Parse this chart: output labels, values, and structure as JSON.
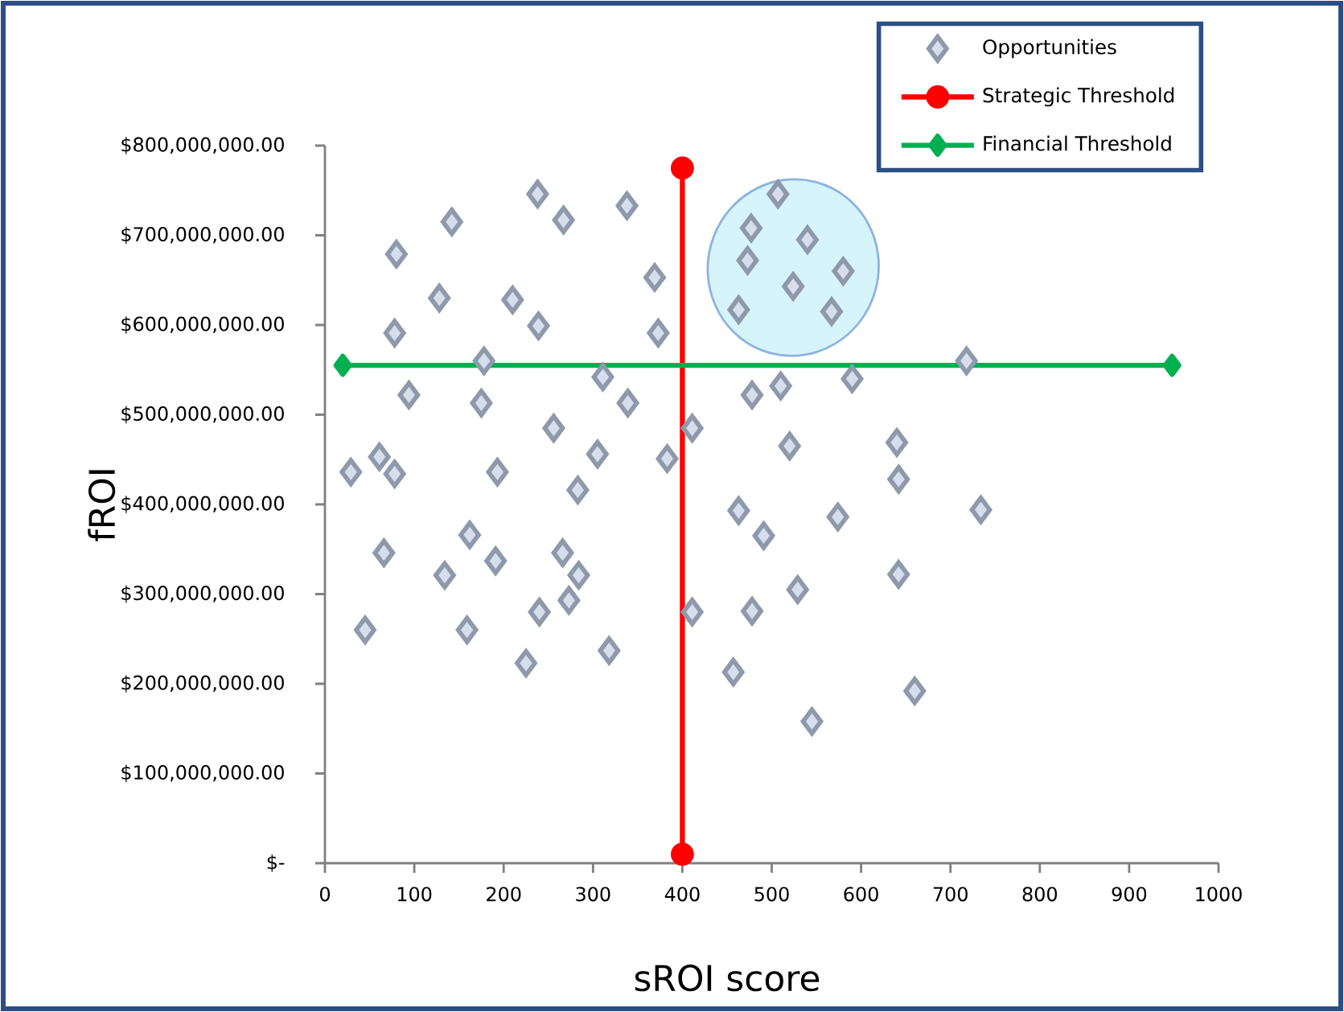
{
  "chart_data": {
    "type": "scatter",
    "xlabel": "sROI score",
    "ylabel": "fROI",
    "xlim": [
      0,
      1000
    ],
    "xticks": [
      0,
      100,
      200,
      300,
      400,
      500,
      600,
      700,
      800,
      900,
      1000
    ],
    "ylim": [
      0,
      800000000
    ],
    "yticks": [
      {
        "value": 0,
        "label": "$-"
      },
      {
        "value": 100000000,
        "label": "$100,000,000.00"
      },
      {
        "value": 200000000,
        "label": "$200,000,000.00"
      },
      {
        "value": 300000000,
        "label": "$300,000,000.00"
      },
      {
        "value": 400000000,
        "label": "$400,000,000.00"
      },
      {
        "value": 500000000,
        "label": "$500,000,000.00"
      },
      {
        "value": 600000000,
        "label": "$600,000,000.00"
      },
      {
        "value": 700000000,
        "label": "$700,000,000.00"
      },
      {
        "value": 800000000,
        "label": "$800,000,000.00"
      }
    ],
    "legend": "top right",
    "series": [
      {
        "name": "Opportunities",
        "type": "scatter",
        "marker": "diamond",
        "color": "#8e99ab",
        "x": [
          29,
          61,
          78,
          66,
          45,
          78,
          80,
          94,
          142,
          128,
          134,
          162,
          159,
          178,
          175,
          191,
          193,
          210,
          238,
          239,
          225,
          240,
          256,
          267,
          266,
          283,
          284,
          273,
          305,
          311,
          318,
          338,
          339,
          369,
          373,
          383,
          411,
          411,
          457,
          463,
          463,
          473,
          477,
          478,
          478,
          491,
          507,
          510,
          520,
          524,
          529,
          540,
          545,
          567,
          574,
          580,
          590,
          640,
          642,
          642,
          660,
          718,
          734
        ],
        "values": [
          436000000,
          453000000,
          434000000,
          346000000,
          260000000,
          591000000,
          679000000,
          522000000,
          715000000,
          630000000,
          321000000,
          366000000,
          260000000,
          560000000,
          513000000,
          337000000,
          436000000,
          628000000,
          746000000,
          599000000,
          223000000,
          280000000,
          485000000,
          717000000,
          346000000,
          416000000,
          321000000,
          293000000,
          456000000,
          542000000,
          237000000,
          733000000,
          513000000,
          653000000,
          591000000,
          451000000,
          485000000,
          280000000,
          213000000,
          617000000,
          393000000,
          672000000,
          708000000,
          522000000,
          281000000,
          365000000,
          746000000,
          532000000,
          465000000,
          643000000,
          305000000,
          695000000,
          158000000,
          615000000,
          386000000,
          660000000,
          540000000,
          469000000,
          428000000,
          322000000,
          192000000,
          560000000,
          394000000
        ]
      },
      {
        "name": "Strategic Threshold",
        "type": "line",
        "marker": "circle",
        "color": "#ff0000",
        "x": [
          400,
          400
        ],
        "values": [
          775000000,
          10000000
        ]
      },
      {
        "name": "Financial Threshold",
        "type": "line",
        "marker": "diamond",
        "color": "#00b050",
        "x": [
          20,
          948
        ],
        "values": [
          555000000,
          555000000
        ]
      }
    ]
  }
}
